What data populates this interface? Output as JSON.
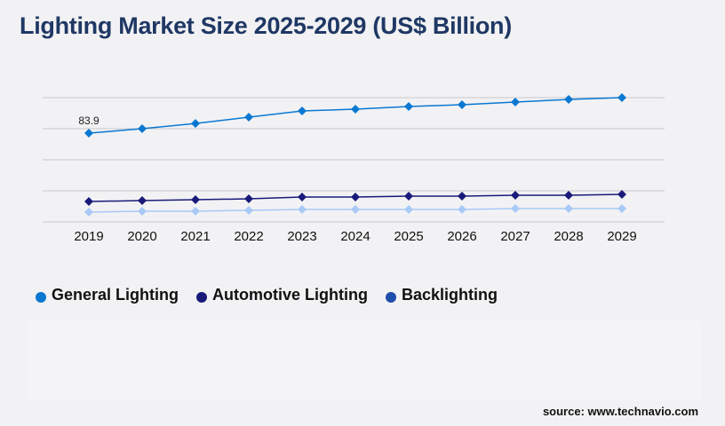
{
  "title": "Lighting Market Size 2025-2029 (US$ Billion)",
  "source": "source: www.technavio.com",
  "chart_data": {
    "type": "line",
    "title": "Lighting Market Size 2025-2029 (US$ Billion)",
    "xlabel": "",
    "ylabel": "",
    "categories": [
      "2019",
      "2020",
      "2021",
      "2022",
      "2023",
      "2024",
      "2025",
      "2026",
      "2027",
      "2028",
      "2029"
    ],
    "ylim": [
      0,
      117.5
    ],
    "grid": true,
    "legend": "bottom-left",
    "series": [
      {
        "name": "General Lighting",
        "color": "#0a78d1",
        "values": [
          83.9,
          88.1,
          93.1,
          99.0,
          104.9,
          106.6,
          109.1,
          110.8,
          113.3,
          115.8,
          117.5
        ],
        "data_labels": {
          "0": "83.9"
        }
      },
      {
        "name": "Automotive Lighting",
        "color": "#1a1a7a",
        "values": [
          19.3,
          20.1,
          21.0,
          21.8,
          23.5,
          23.5,
          24.3,
          24.3,
          25.2,
          25.2,
          26.0
        ]
      },
      {
        "name": "Backlighting",
        "color": "#a9c9f7",
        "legend_color": "#1f4eaa",
        "values": [
          9.2,
          10.1,
          10.1,
          10.9,
          11.7,
          11.7,
          11.7,
          11.7,
          12.6,
          12.6,
          12.6
        ]
      }
    ]
  }
}
